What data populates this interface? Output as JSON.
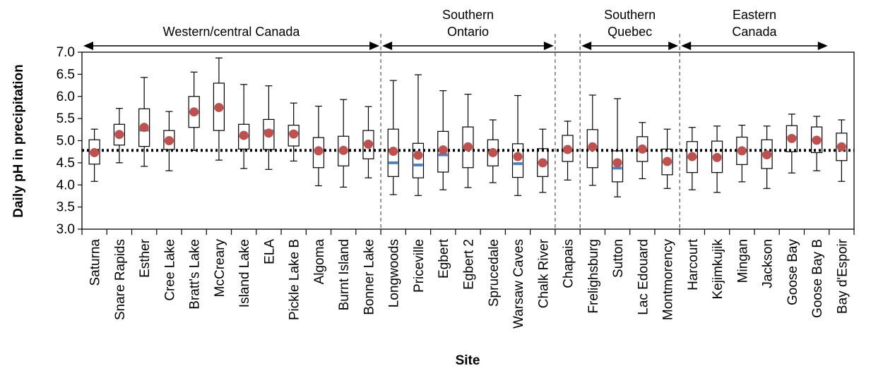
{
  "chart_data": {
    "type": "boxplot",
    "xlabel": "Site",
    "ylabel": "Daily pH in precipitation",
    "ylim": [
      3.0,
      7.0
    ],
    "yticks": [
      "3.0",
      "3.5",
      "4.0",
      "4.5",
      "5.0",
      "5.5",
      "6.0",
      "6.5",
      "7.0"
    ],
    "reference_line": 4.78,
    "colors": {
      "mean_marker": "#c0504d",
      "median_marker": "#4f81bd",
      "box": "#000000",
      "reference_line": "#000000"
    },
    "regions": [
      {
        "label_lines": [
          "Western/central Canada"
        ],
        "start": 0,
        "end": 11
      },
      {
        "label_lines": [
          "Southern",
          "Ontario"
        ],
        "start": 12,
        "end": 18
      },
      {
        "label_lines": [
          "Southern",
          "Quebec"
        ],
        "start": 20,
        "end": 23
      },
      {
        "label_lines": [
          "Eastern",
          "Canada"
        ],
        "start": 24,
        "end": 29
      }
    ],
    "dividers_after": [
      11,
      18,
      19,
      23
    ],
    "sites": [
      {
        "name": "Saturna",
        "min": 4.08,
        "q1": 4.47,
        "median": 4.74,
        "q3": 5.02,
        "max": 5.26,
        "mean": 4.73
      },
      {
        "name": "Snare Rapids",
        "min": 4.5,
        "q1": 4.9,
        "median": 5.15,
        "q3": 5.37,
        "max": 5.73,
        "mean": 5.14
      },
      {
        "name": "Esther",
        "min": 4.42,
        "q1": 4.87,
        "median": 5.24,
        "q3": 5.72,
        "max": 6.43,
        "mean": 5.3
      },
      {
        "name": "Cree Lake",
        "min": 4.32,
        "q1": 4.8,
        "median": 5.0,
        "q3": 5.23,
        "max": 5.66,
        "mean": 5.0
      },
      {
        "name": "Bratt's Lake",
        "min": 4.78,
        "q1": 5.3,
        "median": 5.65,
        "q3": 6.0,
        "max": 6.55,
        "mean": 5.65
      },
      {
        "name": "McCreary",
        "min": 4.56,
        "q1": 5.23,
        "median": 5.74,
        "q3": 6.3,
        "max": 6.87,
        "mean": 5.75
      },
      {
        "name": "Island Lake",
        "min": 4.37,
        "q1": 4.81,
        "median": 5.1,
        "q3": 5.37,
        "max": 6.27,
        "mean": 5.12
      },
      {
        "name": "ELA",
        "min": 4.35,
        "q1": 4.8,
        "median": 5.22,
        "q3": 5.48,
        "max": 6.24,
        "mean": 5.17
      },
      {
        "name": "Pickle Lake B",
        "min": 4.54,
        "q1": 4.88,
        "median": 5.17,
        "q3": 5.35,
        "max": 5.85,
        "mean": 5.15
      },
      {
        "name": "Algoma",
        "min": 3.98,
        "q1": 4.39,
        "median": 4.78,
        "q3": 5.07,
        "max": 5.78,
        "mean": 4.77
      },
      {
        "name": "Burnt Island",
        "min": 3.95,
        "q1": 4.43,
        "median": 4.77,
        "q3": 5.1,
        "max": 5.93,
        "mean": 4.78
      },
      {
        "name": "Bonner Lake",
        "min": 4.16,
        "q1": 4.59,
        "median": 4.93,
        "q3": 5.23,
        "max": 5.77,
        "mean": 4.92
      },
      {
        "name": "Longwoods",
        "min": 3.78,
        "q1": 4.19,
        "median": 4.5,
        "q3": 5.26,
        "max": 6.36,
        "mean": 4.76
      },
      {
        "name": "Priceville",
        "min": 3.76,
        "q1": 4.16,
        "median": 4.45,
        "q3": 4.94,
        "max": 6.49,
        "mean": 4.67
      },
      {
        "name": "Egbert",
        "min": 3.89,
        "q1": 4.29,
        "median": 4.68,
        "q3": 5.21,
        "max": 6.13,
        "mean": 4.79
      },
      {
        "name": "Egbert 2",
        "min": 3.94,
        "q1": 4.39,
        "median": 4.85,
        "q3": 5.31,
        "max": 6.05,
        "mean": 4.86
      },
      {
        "name": "Sprucedale",
        "min": 4.05,
        "q1": 4.43,
        "median": 4.74,
        "q3": 5.02,
        "max": 5.47,
        "mean": 4.73
      },
      {
        "name": "Warsaw Caves",
        "min": 3.76,
        "q1": 4.17,
        "median": 4.48,
        "q3": 4.93,
        "max": 6.02,
        "mean": 4.64
      },
      {
        "name": "Chalk River",
        "min": 3.83,
        "q1": 4.19,
        "median": 4.5,
        "q3": 4.82,
        "max": 5.26,
        "mean": 4.5
      },
      {
        "name": "Chapais",
        "min": 4.11,
        "q1": 4.53,
        "median": 4.8,
        "q3": 5.12,
        "max": 5.44,
        "mean": 4.8
      },
      {
        "name": "Frelighsburg",
        "min": 3.99,
        "q1": 4.39,
        "median": 4.84,
        "q3": 5.25,
        "max": 6.03,
        "mean": 4.86
      },
      {
        "name": "Sutton",
        "min": 3.73,
        "q1": 4.07,
        "median": 4.38,
        "q3": 4.77,
        "max": 5.95,
        "mean": 4.5
      },
      {
        "name": "Lac Edouard",
        "min": 4.14,
        "q1": 4.53,
        "median": 4.8,
        "q3": 5.09,
        "max": 5.41,
        "mean": 4.81
      },
      {
        "name": "Montmorency",
        "min": 3.92,
        "q1": 4.23,
        "median": 4.52,
        "q3": 4.81,
        "max": 5.26,
        "mean": 4.53
      },
      {
        "name": "Harcourt",
        "min": 3.89,
        "q1": 4.28,
        "median": 4.63,
        "q3": 4.98,
        "max": 5.3,
        "mean": 4.64
      },
      {
        "name": "Kejimkujik",
        "min": 3.83,
        "q1": 4.28,
        "median": 4.63,
        "q3": 4.99,
        "max": 5.33,
        "mean": 4.62
      },
      {
        "name": "Mingan",
        "min": 4.07,
        "q1": 4.46,
        "median": 4.77,
        "q3": 5.08,
        "max": 5.35,
        "mean": 4.77
      },
      {
        "name": "Jackson",
        "min": 3.92,
        "q1": 4.37,
        "median": 4.7,
        "q3": 5.02,
        "max": 5.33,
        "mean": 4.68
      },
      {
        "name": "Goose Bay",
        "min": 4.27,
        "q1": 4.75,
        "median": 5.07,
        "q3": 5.34,
        "max": 5.6,
        "mean": 5.05
      },
      {
        "name": "Goose Bay B",
        "min": 4.32,
        "q1": 4.73,
        "median": 5.02,
        "q3": 5.31,
        "max": 5.55,
        "mean": 5.01
      },
      {
        "name": "Bay d'Espoir",
        "min": 4.08,
        "q1": 4.55,
        "median": 4.87,
        "q3": 5.17,
        "max": 5.47,
        "mean": 4.86
      }
    ]
  }
}
